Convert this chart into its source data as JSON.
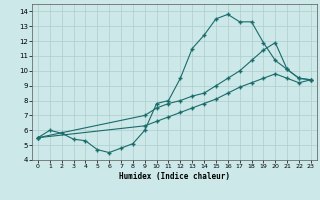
{
  "xlabel": "Humidex (Indice chaleur)",
  "xlim": [
    -0.5,
    23.5
  ],
  "ylim": [
    4,
    14.5
  ],
  "yticks": [
    4,
    5,
    6,
    7,
    8,
    9,
    10,
    11,
    12,
    13,
    14
  ],
  "xticks": [
    0,
    1,
    2,
    3,
    4,
    5,
    6,
    7,
    8,
    9,
    10,
    11,
    12,
    13,
    14,
    15,
    16,
    17,
    18,
    19,
    20,
    21,
    22,
    23
  ],
  "background_color": "#cce8e8",
  "grid_color": "#b0cccc",
  "line_color": "#1a6b6b",
  "line1": {
    "x": [
      0,
      1,
      2,
      3,
      4,
      5,
      6,
      7,
      8,
      9,
      10,
      11,
      12,
      13,
      14,
      15,
      16,
      17,
      18,
      19,
      20,
      21,
      22,
      23
    ],
    "y": [
      5.5,
      6.0,
      5.8,
      5.4,
      5.3,
      4.7,
      4.5,
      4.8,
      5.1,
      6.0,
      7.8,
      8.0,
      9.5,
      11.5,
      12.4,
      13.5,
      13.8,
      13.3,
      13.3,
      11.9,
      10.7,
      10.1,
      9.5,
      9.4
    ]
  },
  "line2": {
    "x": [
      0,
      9,
      10,
      11,
      12,
      13,
      14,
      15,
      16,
      17,
      18,
      19,
      20,
      21,
      22,
      23
    ],
    "y": [
      5.5,
      7.0,
      7.5,
      7.8,
      8.0,
      8.3,
      8.5,
      9.0,
      9.5,
      10.0,
      10.7,
      11.4,
      11.9,
      10.1,
      9.5,
      9.4
    ]
  },
  "line3": {
    "x": [
      0,
      9,
      10,
      11,
      12,
      13,
      14,
      15,
      16,
      17,
      18,
      19,
      20,
      21,
      22,
      23
    ],
    "y": [
      5.5,
      6.3,
      6.6,
      6.9,
      7.2,
      7.5,
      7.8,
      8.1,
      8.5,
      8.9,
      9.2,
      9.5,
      9.8,
      9.5,
      9.2,
      9.4
    ]
  }
}
